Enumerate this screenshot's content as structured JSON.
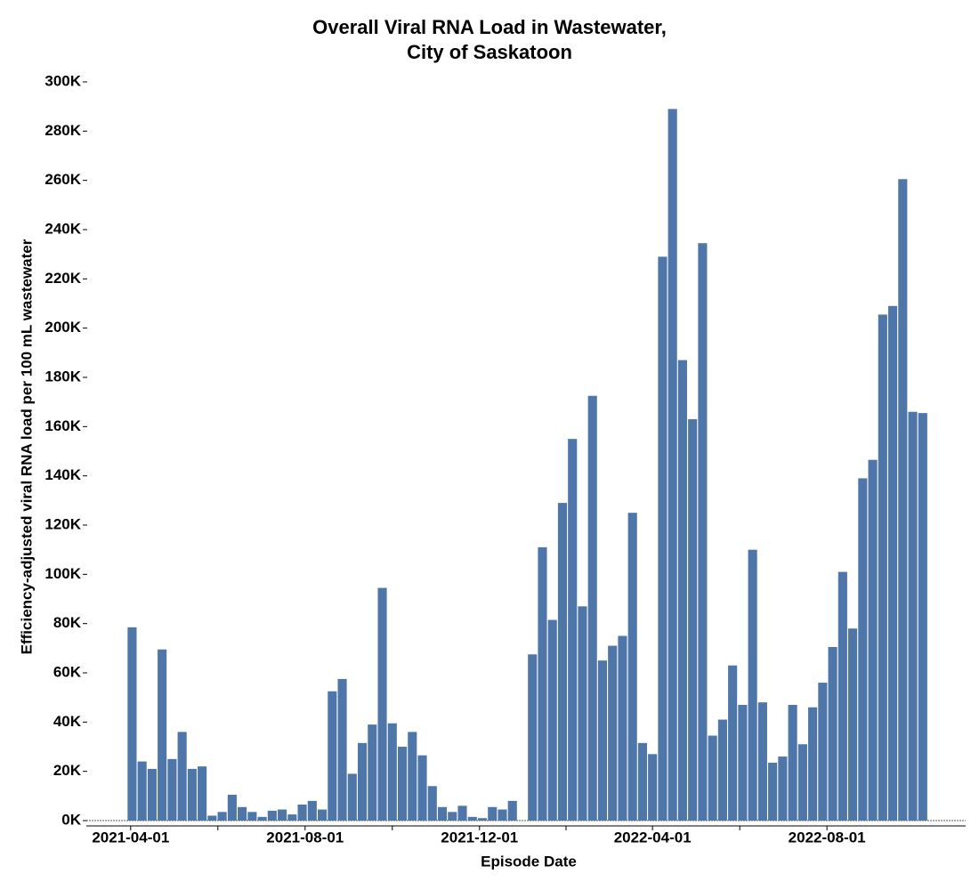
{
  "chart_data": {
    "type": "bar",
    "title": "Overall Viral RNA Load in Wastewater,\nCity of Saskatoon",
    "x_label": "Episode Date",
    "y_label": "Efficiency-adjusted viral RNA load per 100 mL wastewater",
    "color": "#4e76a8",
    "x": [
      "2021-04-02",
      "2021-04-09",
      "2021-04-16",
      "2021-04-23",
      "2021-04-30",
      "2021-05-07",
      "2021-05-14",
      "2021-05-21",
      "2021-05-28",
      "2021-06-04",
      "2021-06-11",
      "2021-06-18",
      "2021-06-25",
      "2021-07-02",
      "2021-07-09",
      "2021-07-16",
      "2021-07-23",
      "2021-07-30",
      "2021-08-06",
      "2021-08-13",
      "2021-08-20",
      "2021-08-27",
      "2021-09-03",
      "2021-09-10",
      "2021-09-17",
      "2021-09-24",
      "2021-10-01",
      "2021-10-08",
      "2021-10-15",
      "2021-10-22",
      "2021-10-29",
      "2021-11-05",
      "2021-11-12",
      "2021-11-19",
      "2021-11-26",
      "2021-12-03",
      "2021-12-10",
      "2021-12-17",
      "2021-12-24",
      "2021-12-31",
      "2022-01-07",
      "2022-01-14",
      "2022-01-21",
      "2022-01-28",
      "2022-02-04",
      "2022-02-11",
      "2022-02-18",
      "2022-02-25",
      "2022-03-04",
      "2022-03-11",
      "2022-03-18",
      "2022-03-25",
      "2022-04-01",
      "2022-04-08",
      "2022-04-15",
      "2022-04-22",
      "2022-04-29",
      "2022-05-06",
      "2022-05-13",
      "2022-05-20",
      "2022-05-27",
      "2022-06-03",
      "2022-06-10",
      "2022-06-17",
      "2022-06-24",
      "2022-07-01",
      "2022-07-08",
      "2022-07-15",
      "2022-07-22",
      "2022-07-29",
      "2022-08-05",
      "2022-08-12",
      "2022-08-19",
      "2022-08-26",
      "2022-09-02",
      "2022-09-09",
      "2022-09-16",
      "2022-09-23",
      "2022-09-30",
      "2022-10-07"
    ],
    "values": [
      78500,
      24000,
      21000,
      69500,
      25000,
      36000,
      21000,
      22000,
      2000,
      3500,
      10500,
      5500,
      3500,
      1500,
      4000,
      4500,
      2500,
      6500,
      8000,
      4500,
      52500,
      57500,
      19000,
      31500,
      39000,
      94500,
      39500,
      30000,
      36000,
      26500,
      14000,
      5500,
      3500,
      6000,
      1500,
      1000,
      5500,
      4500,
      8000,
      null,
      67500,
      111000,
      81500,
      129000,
      155000,
      87000,
      172500,
      65000,
      71000,
      75000,
      125000,
      31500,
      27000,
      229000,
      289000,
      187000,
      163000,
      234500,
      34500,
      41000,
      63000,
      47000,
      110000,
      48000,
      23500,
      26000,
      47000,
      31000,
      46000,
      56000,
      70500,
      101000,
      78000,
      139000,
      146500,
      205500,
      209000,
      260500,
      166000,
      165500
    ],
    "xlim": [
      "2021-03-01",
      "2022-11-06"
    ],
    "xticks": [
      "2021-04-01",
      "2021-08-01",
      "2021-12-01",
      "2022-04-01",
      "2022-08-01"
    ],
    "ylim": [
      0,
      300000
    ],
    "yticks": [
      {
        "value": 0,
        "label": "0K"
      },
      {
        "value": 20000,
        "label": "20K"
      },
      {
        "value": 40000,
        "label": "40K"
      },
      {
        "value": 60000,
        "label": "60K"
      },
      {
        "value": 80000,
        "label": "80K"
      },
      {
        "value": 100000,
        "label": "100K"
      },
      {
        "value": 120000,
        "label": "120K"
      },
      {
        "value": 140000,
        "label": "140K"
      },
      {
        "value": 160000,
        "label": "160K"
      },
      {
        "value": 180000,
        "label": "180K"
      },
      {
        "value": 200000,
        "label": "200K"
      },
      {
        "value": 220000,
        "label": "220K"
      },
      {
        "value": 240000,
        "label": "240K"
      },
      {
        "value": 260000,
        "label": "260K"
      },
      {
        "value": 280000,
        "label": "280K"
      },
      {
        "value": 300000,
        "label": "300K"
      }
    ],
    "grid": false
  }
}
